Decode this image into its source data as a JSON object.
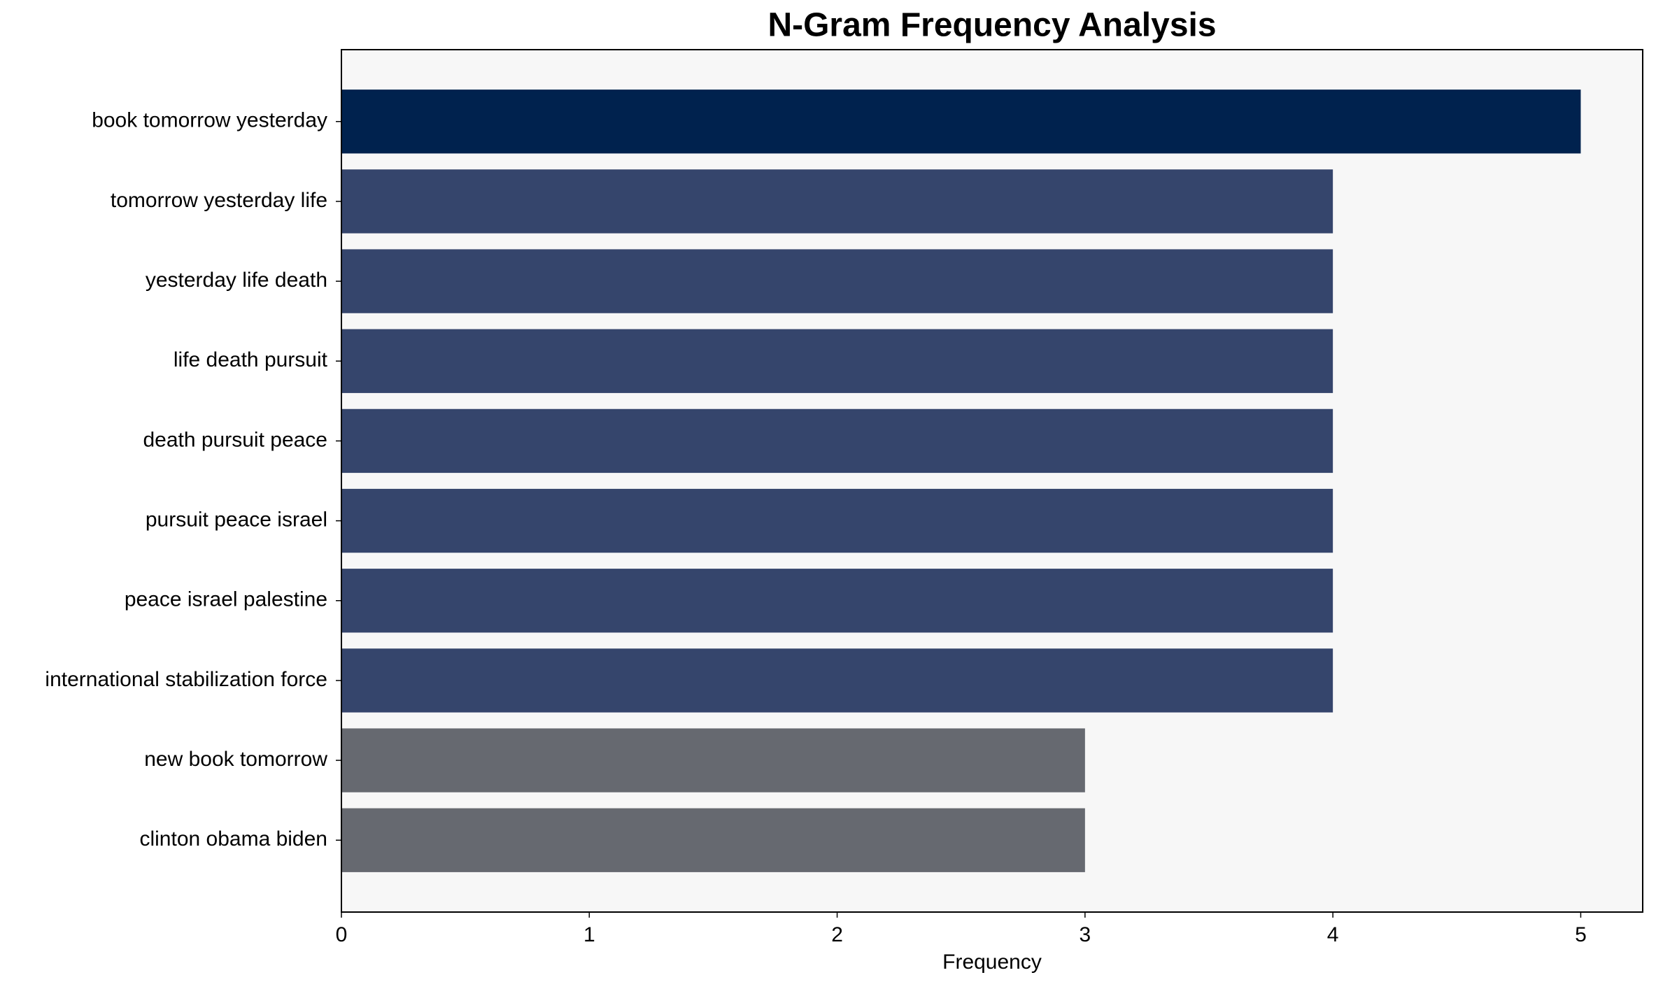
{
  "chart_data": {
    "type": "barh",
    "title": "N-Gram Frequency Analysis",
    "xlabel": "Frequency",
    "categories": [
      "book tomorrow yesterday",
      "tomorrow yesterday life",
      "yesterday life death",
      "life death pursuit",
      "death pursuit peace",
      "pursuit peace israel",
      "peace israel palestine",
      "international stabilization force",
      "new book tomorrow",
      "clinton obama biden"
    ],
    "values": [
      5,
      4,
      4,
      4,
      4,
      4,
      4,
      4,
      3,
      3
    ],
    "colors": [
      "#00224e",
      "#35456c",
      "#35456c",
      "#35456c",
      "#35456c",
      "#35456c",
      "#35456c",
      "#35456c",
      "#666970",
      "#666970"
    ],
    "xlim": [
      0,
      5.25
    ],
    "xticks": [
      0,
      1,
      2,
      3,
      4,
      5
    ],
    "background": "#f7f7f7"
  }
}
